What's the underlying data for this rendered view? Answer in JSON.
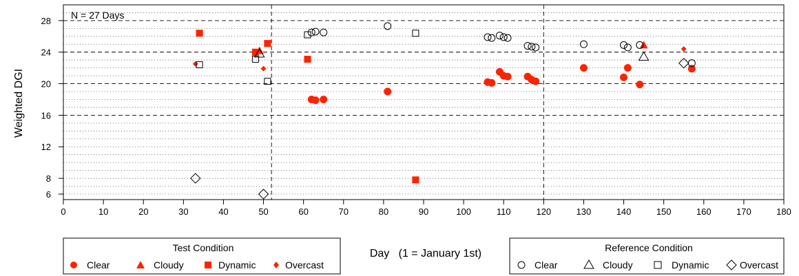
{
  "chart_data": {
    "type": "scatter",
    "annotation": "N = 27 Days",
    "xlabel": "Day   (1 = January 1st)",
    "ylabel": "Weighted DGI",
    "xlim": [
      0,
      180
    ],
    "ylim": [
      5.3,
      30
    ],
    "x_ticks": [
      0,
      10,
      20,
      30,
      40,
      50,
      60,
      70,
      80,
      90,
      100,
      110,
      120,
      130,
      140,
      150,
      160,
      170,
      180
    ],
    "x_tick_labels": [
      "0",
      "10",
      "20",
      "30",
      "40",
      "50",
      "60",
      "70",
      "80",
      "90",
      "100",
      "110",
      "120",
      "130",
      "140",
      "150",
      "160",
      "170",
      "180"
    ],
    "y_ticks": [
      6,
      8,
      12,
      16,
      20,
      24,
      28
    ],
    "y_tick_labels": [
      "6",
      "8",
      "12",
      "16",
      "20",
      "24",
      "28"
    ],
    "grid": "dotted horizontal lines every 1 unit",
    "dashed_y_lines": [
      16,
      20,
      24,
      28
    ],
    "dashed_x_lines": [
      52,
      120
    ],
    "legends": [
      {
        "title": "Test Condition",
        "placement": "bottom-left",
        "entries": [
          "Clear",
          "Cloudy",
          "Dynamic",
          "Overcast"
        ]
      },
      {
        "title": "Reference Condition",
        "placement": "bottom-right",
        "entries": [
          "Clear",
          "Cloudy",
          "Dynamic",
          "Overcast"
        ]
      }
    ],
    "colors": {
      "test": "#ff2200",
      "reference": "#000000"
    },
    "series": [
      {
        "name": "Clear",
        "group": "Test Condition",
        "marker": "filled-circle",
        "x": [
          62,
          63,
          65,
          81,
          106,
          107,
          109,
          110,
          111,
          116,
          117,
          118,
          130,
          140,
          141,
          144,
          157
        ],
        "y": [
          18.0,
          17.9,
          18.0,
          19.0,
          20.2,
          20.1,
          21.5,
          21.0,
          20.9,
          20.9,
          20.5,
          20.3,
          22.0,
          20.8,
          22.0,
          19.9,
          21.9
        ]
      },
      {
        "name": "Cloudy",
        "group": "Test Condition",
        "marker": "filled-triangle",
        "x": [
          49,
          145
        ],
        "y": [
          24.2,
          24.9
        ]
      },
      {
        "name": "Dynamic",
        "group": "Test Condition",
        "marker": "filled-square",
        "x": [
          34,
          48,
          51,
          61,
          88
        ],
        "y": [
          26.4,
          24.0,
          25.1,
          23.1,
          7.8
        ]
      },
      {
        "name": "Overcast",
        "group": "Test Condition",
        "marker": "filled-diamond",
        "x": [
          33,
          50,
          155
        ],
        "y": [
          22.5,
          21.9,
          24.4
        ]
      },
      {
        "name": "Clear",
        "group": "Reference Condition",
        "marker": "open-circle",
        "x": [
          62,
          63,
          65,
          81,
          106,
          107,
          109,
          110,
          111,
          116,
          117,
          118,
          130,
          140,
          141,
          144,
          157
        ],
        "y": [
          26.5,
          26.6,
          26.5,
          27.3,
          25.9,
          25.8,
          26.1,
          25.9,
          25.8,
          24.8,
          24.7,
          24.6,
          25.0,
          24.9,
          24.6,
          24.9,
          22.6
        ]
      },
      {
        "name": "Cloudy",
        "group": "Reference Condition",
        "marker": "open-triangle",
        "x": [
          49,
          145
        ],
        "y": [
          23.8,
          23.4
        ]
      },
      {
        "name": "Dynamic",
        "group": "Reference Condition",
        "marker": "open-square",
        "x": [
          34,
          48,
          51,
          61,
          88
        ],
        "y": [
          22.4,
          23.1,
          20.3,
          26.2,
          26.4
        ]
      },
      {
        "name": "Overcast",
        "group": "Reference Condition",
        "marker": "open-diamond",
        "x": [
          33,
          50,
          155
        ],
        "y": [
          8.0,
          6.0,
          22.6
        ]
      }
    ]
  }
}
